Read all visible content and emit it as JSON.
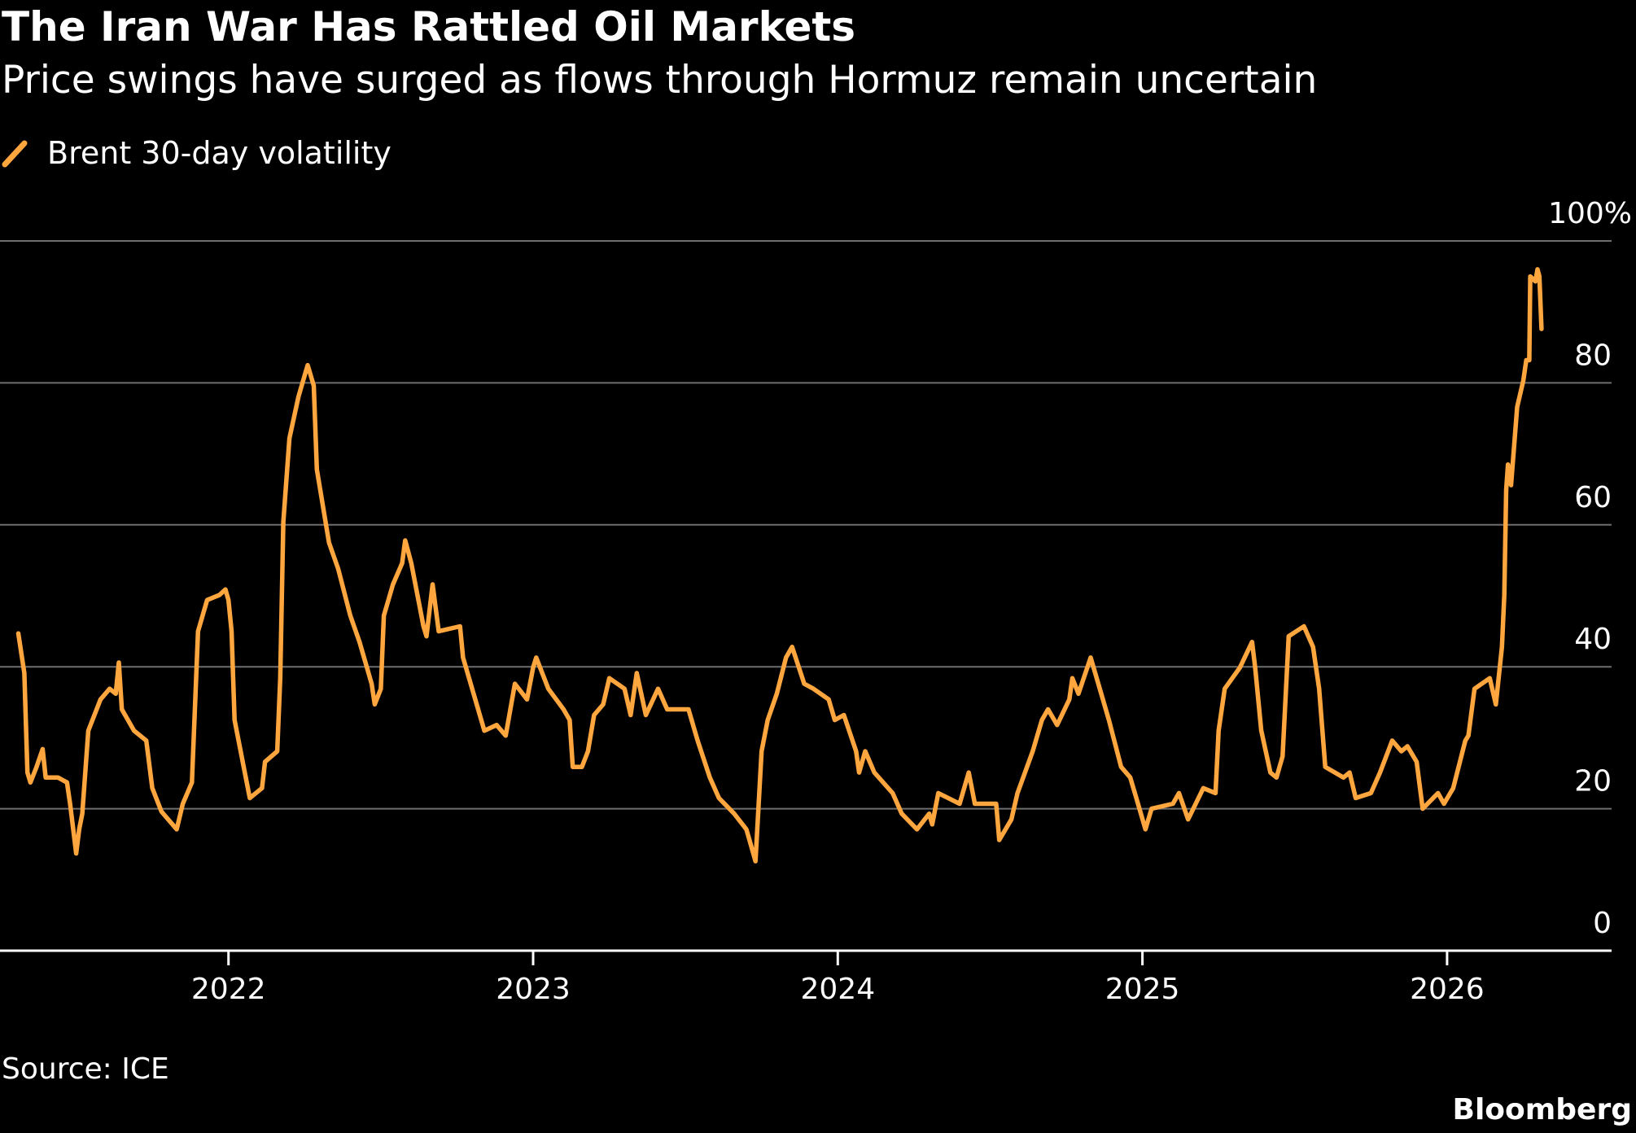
{
  "chart_data": {
    "type": "line",
    "title": "The Iran War Has Rattled Oil Markets",
    "subtitle": "Price swings have surged as flows through Hormuz remain uncertain",
    "source": "Source: ICE",
    "credit": "Bloomberg",
    "x": [
      2021.31,
      2021.33,
      2021.34,
      2021.35,
      2021.37,
      2021.39,
      2021.4,
      2021.44,
      2021.47,
      2021.48,
      2021.5,
      2021.51,
      2021.52,
      2021.54,
      2021.56,
      2021.58,
      2021.61,
      2021.63,
      2021.64,
      2021.65,
      2021.69,
      2021.73,
      2021.75,
      2021.78,
      2021.81,
      2021.83,
      2021.85,
      2021.88,
      2021.9,
      2021.93,
      2021.97,
      2021.99,
      2022.0,
      2022.01,
      2022.02,
      2022.05,
      2022.07,
      2022.11,
      2022.12,
      2022.16,
      2022.17,
      2022.18,
      2022.2,
      2022.23,
      2022.26,
      2022.28,
      2022.29,
      2022.33,
      2022.36,
      2022.4,
      2022.43,
      2022.47,
      2022.48,
      2022.5,
      2022.51,
      2022.54,
      2022.57,
      2022.58,
      2022.6,
      2022.64,
      2022.65,
      2022.67,
      2022.69,
      2022.76,
      2022.77,
      2022.81,
      2022.84,
      2022.88,
      2022.91,
      2022.94,
      2022.98,
      2023.0,
      2023.01,
      2023.05,
      2023.1,
      2023.12,
      2023.13,
      2023.16,
      2023.18,
      2023.2,
      2023.23,
      2023.25,
      2023.3,
      2023.32,
      2023.34,
      2023.37,
      2023.41,
      2023.44,
      2023.51,
      2023.54,
      2023.58,
      2023.61,
      2023.66,
      2023.7,
      2023.71,
      2023.73,
      2023.75,
      2023.77,
      2023.8,
      2023.83,
      2023.85,
      2023.89,
      2023.92,
      2023.97,
      2023.99,
      2024.02,
      2024.06,
      2024.07,
      2024.09,
      2024.12,
      2024.18,
      2024.21,
      2024.26,
      2024.3,
      2024.31,
      2024.33,
      2024.4,
      2024.43,
      2024.45,
      2024.52,
      2024.53,
      2024.57,
      2024.59,
      2024.64,
      2024.67,
      2024.69,
      2024.72,
      2024.76,
      2024.77,
      2024.79,
      2024.83,
      2024.86,
      2024.89,
      2024.93,
      2024.96,
      2024.98,
      2025.01,
      2025.03,
      2025.1,
      2025.12,
      2025.15,
      2025.2,
      2025.24,
      2025.25,
      2025.27,
      2025.32,
      2025.36,
      2025.37,
      2025.39,
      2025.42,
      2025.44,
      2025.46,
      2025.48,
      2025.53,
      2025.56,
      2025.58,
      2025.6,
      2025.66,
      2025.68,
      2025.7,
      2025.75,
      2025.78,
      2025.82,
      2025.85,
      2025.87,
      2025.9,
      2025.92,
      2025.97,
      2025.99,
      2026.02,
      2026.06,
      2026.07,
      2026.09,
      2026.14,
      2026.16,
      2026.18,
      2026.188,
      2026.194,
      2026.2,
      2026.21,
      2026.23,
      2026.25,
      2026.26,
      2026.27,
      2026.273,
      2026.29,
      2026.297,
      2026.303,
      2026.31
    ],
    "series": [
      {
        "name": "Brent 30-day volatility",
        "color": "#ffa63f",
        "values": [
          44.7,
          39.1,
          25.1,
          23.7,
          25.9,
          28.4,
          24.4,
          24.4,
          23.7,
          20.7,
          13.7,
          17.1,
          19.3,
          31.0,
          33.2,
          35.4,
          36.9,
          36.2,
          40.6,
          34.0,
          31.0,
          29.6,
          22.9,
          19.6,
          18.1,
          17.1,
          20.7,
          23.7,
          45.0,
          49.4,
          50.1,
          50.9,
          49.4,
          45.0,
          32.5,
          25.9,
          21.5,
          22.9,
          26.6,
          28.1,
          38.4,
          60.4,
          72.2,
          78.1,
          82.5,
          79.6,
          67.8,
          57.5,
          53.8,
          47.2,
          43.5,
          37.6,
          34.7,
          36.9,
          47.2,
          51.6,
          54.6,
          57.8,
          54.6,
          45.7,
          44.3,
          51.6,
          45.0,
          45.7,
          41.3,
          35.4,
          31.0,
          31.8,
          30.3,
          37.6,
          35.4,
          39.9,
          41.3,
          36.9,
          34.0,
          32.5,
          25.9,
          25.9,
          28.1,
          33.2,
          34.7,
          38.4,
          36.9,
          33.2,
          39.1,
          33.2,
          36.9,
          34.0,
          34.0,
          29.6,
          24.4,
          21.5,
          19.3,
          17.1,
          15.6,
          12.6,
          28.1,
          32.5,
          36.2,
          41.3,
          42.8,
          37.6,
          36.9,
          35.4,
          32.5,
          33.2,
          28.1,
          25.1,
          28.1,
          25.1,
          22.2,
          19.3,
          17.1,
          19.3,
          17.8,
          22.2,
          20.7,
          25.1,
          20.7,
          20.7,
          15.6,
          18.5,
          22.2,
          28.1,
          32.5,
          34.0,
          31.8,
          35.4,
          38.4,
          36.2,
          41.3,
          36.9,
          32.5,
          25.9,
          24.4,
          21.5,
          17.1,
          20.0,
          20.7,
          22.2,
          18.5,
          22.9,
          22.2,
          31.0,
          36.9,
          39.9,
          43.5,
          39.9,
          31.0,
          25.1,
          24.4,
          27.4,
          44.3,
          45.7,
          42.8,
          36.9,
          25.9,
          24.4,
          25.1,
          21.5,
          22.2,
          25.1,
          29.6,
          28.1,
          28.8,
          26.6,
          20.0,
          22.2,
          20.7,
          22.9,
          29.6,
          30.3,
          36.9,
          38.4,
          34.7,
          42.8,
          50.1,
          64.9,
          68.5,
          65.6,
          76.6,
          80.3,
          83.2,
          83.2,
          95.0,
          94.3,
          96.0,
          95.0,
          87.6
        ]
      }
    ],
    "xlim": [
      2021.25,
      2026.54
    ],
    "xticks": [
      2022,
      2023,
      2024,
      2025,
      2026
    ],
    "ylim": [
      0,
      100
    ],
    "yticks": [
      0,
      20,
      40,
      60,
      80,
      {
        "value": 100,
        "label": "100%"
      }
    ],
    "grid": true,
    "legend": "top-left"
  }
}
